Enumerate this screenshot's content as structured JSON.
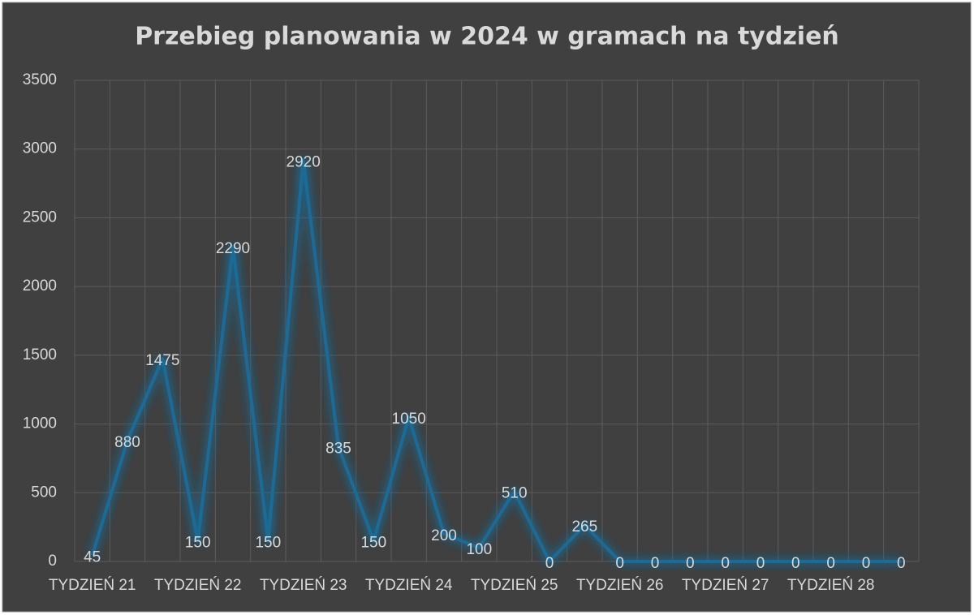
{
  "chart_data": {
    "type": "line",
    "title": "Przebieg planowania w 2024 w gramach na tydzień",
    "categories": [
      "TYDZIEŃ 21",
      null,
      null,
      "TYDZIEŃ 22",
      null,
      null,
      "TYDZIEŃ 23",
      null,
      null,
      "TYDZIEŃ 24",
      null,
      null,
      "TYDZIEŃ 25",
      null,
      null,
      "TYDZIEŃ 26",
      null,
      null,
      "TYDZIEŃ 27",
      null,
      null,
      "TYDZIEŃ 28",
      null,
      null
    ],
    "series": [
      {
        "name": "Przebieg planowania",
        "color": "#1f6a96",
        "values": [
          45,
          880,
          1475,
          150,
          2290,
          150,
          2920,
          835,
          150,
          1050,
          200,
          100,
          510,
          0,
          265,
          0,
          0,
          0,
          0,
          0,
          0,
          0,
          0,
          0
        ]
      }
    ],
    "ylim": [
      0,
      3500
    ],
    "yticks": [
      0,
      500,
      1000,
      1500,
      2000,
      2500,
      3000,
      3500
    ],
    "grid": true,
    "data_labels": true
  }
}
